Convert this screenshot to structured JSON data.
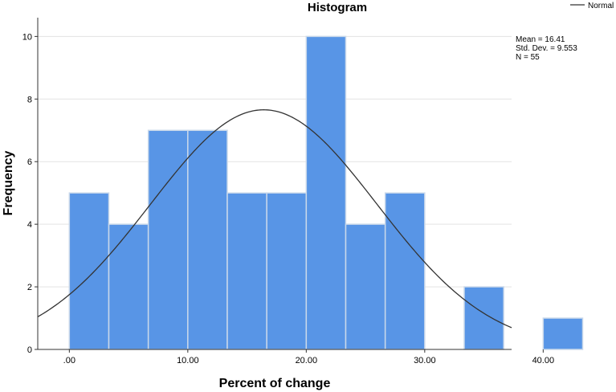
{
  "chart_data": {
    "type": "bar",
    "title": "Histogram",
    "xlabel": "Percent of change",
    "ylabel": "Frequency",
    "bin_width": 5,
    "bins": [
      {
        "start": 0,
        "end": 5,
        "count": 5
      },
      {
        "start": 5,
        "end": 10,
        "count": 4
      },
      {
        "start": 10,
        "end": 15,
        "count": 7
      },
      {
        "start": 15,
        "end": 20,
        "count": 7
      },
      {
        "start": 20,
        "end": 25,
        "count": 5
      },
      {
        "start": 25,
        "end": 30,
        "count": 5
      },
      {
        "start": 30,
        "end": 35,
        "count": 10
      },
      {
        "start": 35,
        "end": 40,
        "count": 4
      },
      {
        "start": 40,
        "end": 45,
        "count": 5
      },
      {
        "start": 45,
        "end": 50,
        "count": 0
      },
      {
        "start": 50,
        "end": 55,
        "count": 2
      },
      {
        "start": 55,
        "end": 60,
        "count": 0
      },
      {
        "start": 60,
        "end": 65,
        "count": 1
      }
    ],
    "xlim": [
      -4,
      56
    ],
    "ylim": [
      0,
      10.6
    ],
    "x_ticks": [
      {
        "value": 0,
        "label": ".00"
      },
      {
        "value": 15,
        "label": "10.00"
      },
      {
        "value": 30,
        "label": "20.00"
      },
      {
        "value": 45,
        "label": "30.00"
      },
      {
        "value": 60,
        "label": "40.00"
      }
    ],
    "y_ticks": [
      {
        "value": 0,
        "label": "0"
      },
      {
        "value": 2,
        "label": "2"
      },
      {
        "value": 4,
        "label": "4"
      },
      {
        "value": 6,
        "label": "6"
      },
      {
        "value": 8,
        "label": "8"
      },
      {
        "value": 10,
        "label": "10"
      }
    ],
    "grid": true,
    "normal_curve": {
      "mean": 16.41,
      "std_dev": 9.553,
      "n": 55
    },
    "legend": {
      "placement": "top-right",
      "entries": [
        {
          "label": "Normal",
          "color": "#333333"
        }
      ]
    },
    "stats": {
      "mean_label": "Mean = 16.41",
      "std_label": "Std. Dev. = 9.553",
      "n_label": "N = 55"
    },
    "colors": {
      "bar_fill": "#5895e6",
      "bar_edge": "#c9d8ea",
      "curve": "#333333",
      "grid": "#e3e3e3",
      "axis": "#333333"
    }
  }
}
